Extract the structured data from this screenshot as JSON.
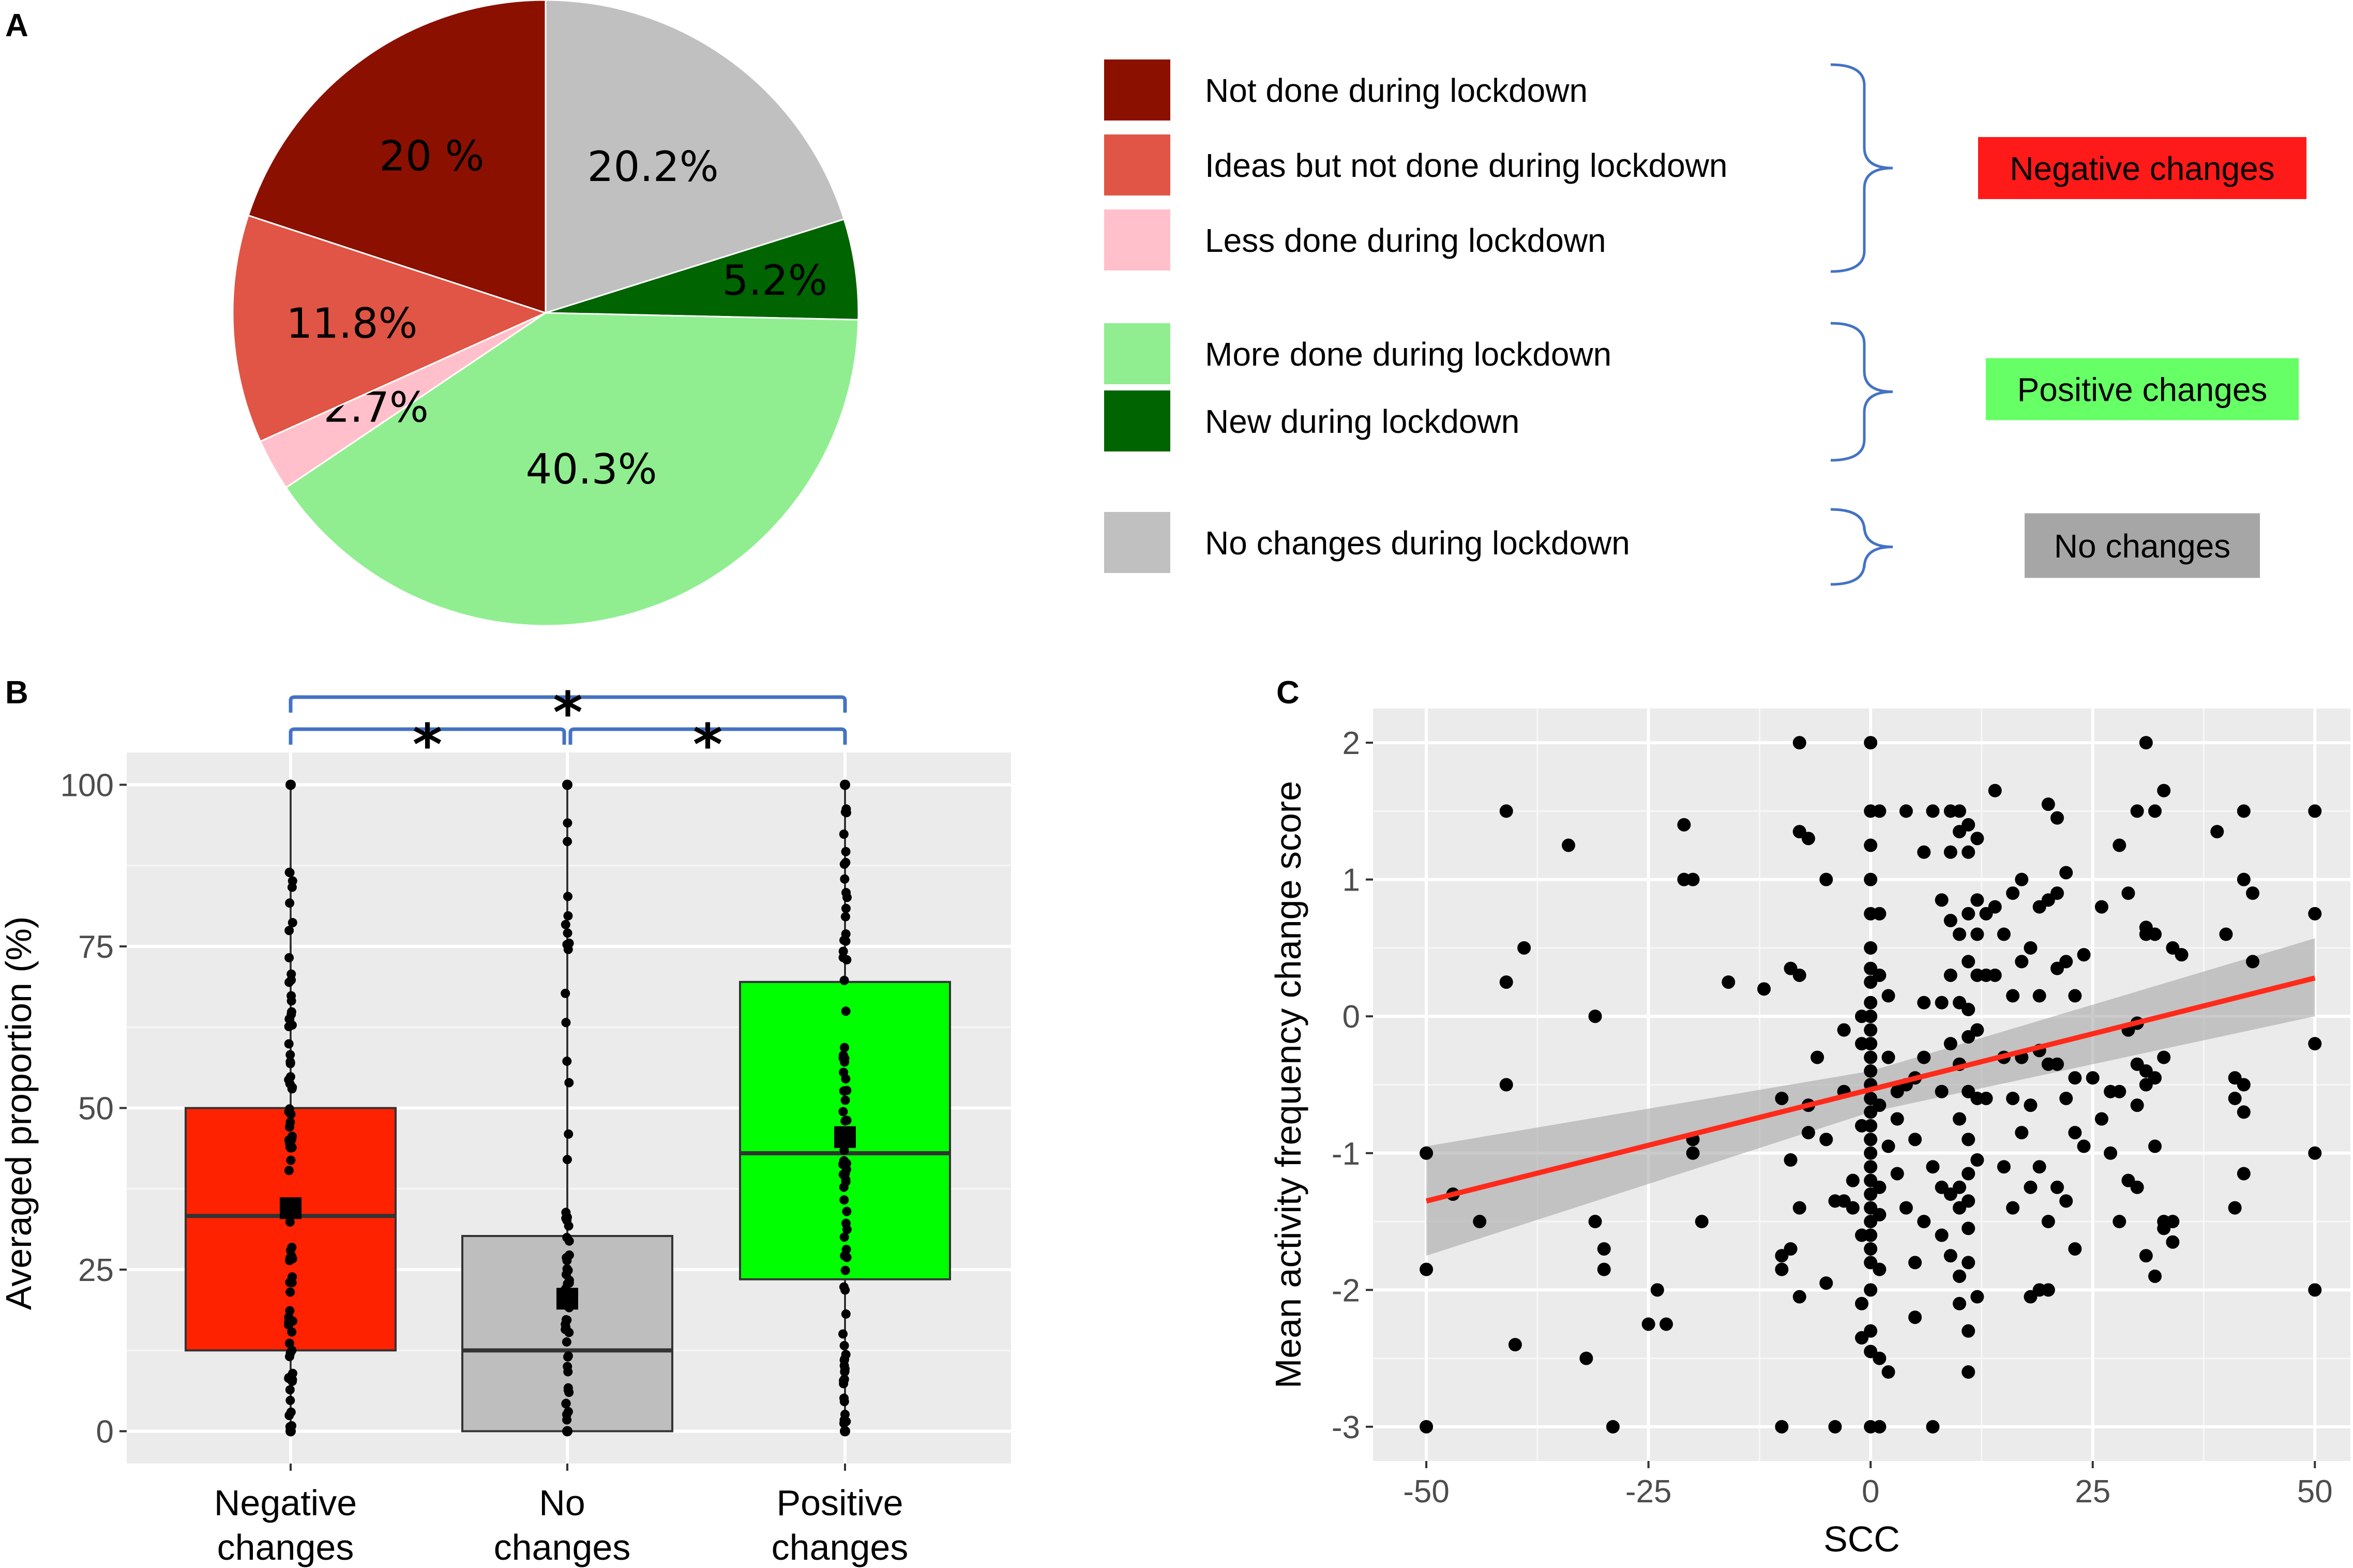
{
  "panel_labels": [
    "A",
    "B",
    "C"
  ],
  "chart_data": [
    {
      "type": "pie",
      "panel": "A",
      "slices": [
        {
          "label": "No changes during lockdown",
          "value": 20.2,
          "text": "20.2%",
          "color": "#c0c0c0"
        },
        {
          "label": "New during lockdown",
          "value": 5.2,
          "text": "5.2%",
          "color": "#006400"
        },
        {
          "label": "More done during lockdown",
          "value": 40.3,
          "text": "40.3%",
          "color": "#90ee90"
        },
        {
          "label": "Less done during lockdown",
          "value": 2.7,
          "text": "2.7%",
          "color": "#ffc0cb"
        },
        {
          "label": "Ideas but not done during lockdown",
          "value": 11.8,
          "text": "11.8%",
          "color": "#e05545"
        },
        {
          "label": "Not done during lockdown",
          "value": 20.0,
          "text": "20 %",
          "color": "#8b1000"
        }
      ],
      "legend": [
        {
          "label": "Not done during lockdown",
          "color": "#8b1000"
        },
        {
          "label": "Ideas but not done during lockdown",
          "color": "#e05545"
        },
        {
          "label": "Less done during lockdown",
          "color": "#ffc0cb"
        },
        {
          "label": "More done during lockdown",
          "color": "#90ee90"
        },
        {
          "label": "New during lockdown",
          "color": "#006400"
        },
        {
          "label": "No changes during lockdown",
          "color": "#c0c0c0"
        }
      ],
      "groups": [
        {
          "label": "Negative changes",
          "bg": "#ff1a1a",
          "fg": "#000000"
        },
        {
          "label": "Positive changes",
          "bg": "#66ff66",
          "fg": "#000000"
        },
        {
          "label": "No changes",
          "bg": "#a6a6a6",
          "fg": "#000000"
        }
      ]
    },
    {
      "type": "box",
      "panel": "B",
      "ylabel": "Averaged proportion (%)",
      "ylim": [
        -5,
        105
      ],
      "yticks": [
        0,
        25,
        50,
        75,
        100
      ],
      "categories": [
        {
          "label": [
            "Negative",
            "changes"
          ],
          "q1": 12.5,
          "median": 33.3,
          "q3": 50,
          "min": 0,
          "max": 100,
          "mean": 34.5,
          "color": "#ff2200"
        },
        {
          "label": [
            "No",
            "changes"
          ],
          "q1": 0,
          "median": 12.5,
          "q3": 30.2,
          "min": 0,
          "max": 100,
          "mean": 20.5,
          "color": "#bebebe"
        },
        {
          "label": [
            "Positive",
            "changes"
          ],
          "q1": 23.5,
          "median": 43,
          "q3": 69.5,
          "min": 0,
          "max": 100,
          "mean": 45.5,
          "color": "#00ff00"
        }
      ],
      "significance": [
        {
          "from": 0,
          "to": 1,
          "label": "*"
        },
        {
          "from": 1,
          "to": 2,
          "label": "*"
        },
        {
          "from": 0,
          "to": 2,
          "label": "*"
        }
      ]
    },
    {
      "type": "scatter",
      "panel": "C",
      "xlabel": "SCC",
      "ylabel": "Mean activity frequency change score",
      "xlim": [
        -56,
        54
      ],
      "ylim": [
        -3.25,
        2.25
      ],
      "xticks": [
        -50,
        -25,
        0,
        25,
        50
      ],
      "yticks": [
        -3,
        -2,
        -1,
        0,
        1,
        2
      ],
      "fit": {
        "x0": -50,
        "y0": -1.35,
        "x1": 50,
        "y1": 0.28,
        "color": "#ff2a1a",
        "band_lower": [
          -1.75,
          0.0
        ],
        "band_upper": [
          -0.95,
          0.57
        ]
      },
      "points": [
        [
          -50,
          -1
        ],
        [
          -50,
          -1.85
        ],
        [
          -50,
          -3
        ],
        [
          -47,
          -1.3
        ],
        [
          -44,
          -1.5
        ],
        [
          -41,
          1.5
        ],
        [
          -41,
          0.25
        ],
        [
          -41,
          -0.5
        ],
        [
          -40,
          -2.4
        ],
        [
          -39,
          0.5
        ],
        [
          -34,
          1.25
        ],
        [
          -32,
          -2.5
        ],
        [
          -31,
          0
        ],
        [
          -31,
          -1.5
        ],
        [
          -30,
          -1.7
        ],
        [
          -30,
          -1.85
        ],
        [
          -29,
          -3
        ],
        [
          -25,
          -2.25
        ],
        [
          -24,
          -2
        ],
        [
          -23,
          -2.25
        ],
        [
          -21,
          1.4
        ],
        [
          -21,
          1
        ],
        [
          -20,
          1
        ],
        [
          -20,
          -0.9
        ],
        [
          -20,
          -1
        ],
        [
          -19,
          -1.5
        ],
        [
          -16,
          0.25
        ],
        [
          -12,
          0.2
        ],
        [
          -10,
          -0.6
        ],
        [
          -10,
          -1.75
        ],
        [
          -10,
          -1.85
        ],
        [
          -10,
          -3
        ],
        [
          -9,
          0.35
        ],
        [
          -9,
          -1.7
        ],
        [
          -8,
          2
        ],
        [
          -8,
          1.35
        ],
        [
          -8,
          0.3
        ],
        [
          -7,
          1.3
        ],
        [
          -7,
          -0.65
        ],
        [
          -7,
          -0.85
        ],
        [
          -9,
          -1.05
        ],
        [
          -8,
          -1.4
        ],
        [
          -8,
          -2.05
        ],
        [
          -6,
          -0.3
        ],
        [
          -5,
          1
        ],
        [
          -5,
          -0.9
        ],
        [
          -5,
          -1.95
        ],
        [
          -4,
          -1.35
        ],
        [
          -4,
          -3
        ],
        [
          -3,
          -0.1
        ],
        [
          -3,
          -0.55
        ],
        [
          -3,
          -1.35
        ],
        [
          -2,
          -1.2
        ],
        [
          -2,
          -1.4
        ],
        [
          -1,
          0
        ],
        [
          -1,
          -0.2
        ],
        [
          -1,
          -0.8
        ],
        [
          -1,
          -1.6
        ],
        [
          -1,
          -2.1
        ],
        [
          -1,
          -2.35
        ],
        [
          0,
          2
        ],
        [
          0,
          1.5
        ],
        [
          0,
          1.25
        ],
        [
          0,
          1
        ],
        [
          0,
          0.75
        ],
        [
          0,
          0.5
        ],
        [
          0,
          0.35
        ],
        [
          0,
          0.25
        ],
        [
          0,
          0.1
        ],
        [
          0,
          0
        ],
        [
          0,
          -0.1
        ],
        [
          0,
          -0.2
        ],
        [
          0,
          -0.3
        ],
        [
          0,
          -0.4
        ],
        [
          0,
          -0.5
        ],
        [
          0,
          -0.6
        ],
        [
          0,
          -0.7
        ],
        [
          0,
          -0.8
        ],
        [
          0,
          -0.9
        ],
        [
          0,
          -1
        ],
        [
          0,
          -1.1
        ],
        [
          0,
          -1.2
        ],
        [
          0,
          -1.3
        ],
        [
          0,
          -1.4
        ],
        [
          0,
          -1.5
        ],
        [
          0,
          -1.6
        ],
        [
          0,
          -1.7
        ],
        [
          0,
          -1.8
        ],
        [
          0,
          -2
        ],
        [
          0,
          -2.3
        ],
        [
          0,
          -2.45
        ],
        [
          0,
          -3
        ],
        [
          1,
          1.5
        ],
        [
          1,
          0.75
        ],
        [
          1,
          0.3
        ],
        [
          1,
          -0.65
        ],
        [
          1,
          -1.25
        ],
        [
          1,
          -1.45
        ],
        [
          1,
          -1.85
        ],
        [
          1,
          -2.5
        ],
        [
          1,
          -3
        ],
        [
          2,
          0.15
        ],
        [
          2,
          -0.3
        ],
        [
          2,
          -0.95
        ],
        [
          2,
          -2.6
        ],
        [
          3,
          -0.55
        ],
        [
          3,
          -0.75
        ],
        [
          3,
          -1.15
        ],
        [
          4,
          1.5
        ],
        [
          4,
          -0.5
        ],
        [
          4,
          -1.4
        ],
        [
          5,
          -0.45
        ],
        [
          5,
          -0.9
        ],
        [
          5,
          -1.8
        ],
        [
          5,
          -2.2
        ],
        [
          6,
          1.2
        ],
        [
          6,
          0.1
        ],
        [
          6,
          -0.3
        ],
        [
          6,
          -1.5
        ],
        [
          7,
          1.5
        ],
        [
          7,
          -1.1
        ],
        [
          7,
          -3
        ],
        [
          8,
          0.85
        ],
        [
          8,
          0.1
        ],
        [
          8,
          -0.55
        ],
        [
          8,
          -1.25
        ],
        [
          8,
          -1.6
        ],
        [
          9,
          1.5
        ],
        [
          9,
          1.2
        ],
        [
          9,
          0.7
        ],
        [
          9,
          0.3
        ],
        [
          9,
          -0.2
        ],
        [
          9,
          -1.3
        ],
        [
          9,
          -1.75
        ],
        [
          10,
          1.5
        ],
        [
          10,
          1.35
        ],
        [
          10,
          0.6
        ],
        [
          10,
          0.1
        ],
        [
          10,
          -0.35
        ],
        [
          10,
          -0.75
        ],
        [
          10,
          -1.25
        ],
        [
          10,
          -1.4
        ],
        [
          10,
          -1.9
        ],
        [
          10,
          -2.1
        ],
        [
          11,
          1.4
        ],
        [
          11,
          1.2
        ],
        [
          11,
          0.75
        ],
        [
          11,
          0.4
        ],
        [
          11,
          0.05
        ],
        [
          11,
          -0.15
        ],
        [
          11,
          -0.55
        ],
        [
          11,
          -0.9
        ],
        [
          11,
          -1.15
        ],
        [
          11,
          -1.35
        ],
        [
          11,
          -1.55
        ],
        [
          11,
          -1.8
        ],
        [
          11,
          -2.3
        ],
        [
          11,
          -2.6
        ],
        [
          12,
          1.3
        ],
        [
          12,
          0.85
        ],
        [
          12,
          0.6
        ],
        [
          12,
          0.3
        ],
        [
          12,
          -0.1
        ],
        [
          12,
          -0.6
        ],
        [
          12,
          -1.05
        ],
        [
          12,
          -2.05
        ],
        [
          13,
          0.75
        ],
        [
          13,
          0.3
        ],
        [
          13,
          -0.6
        ],
        [
          14,
          1.65
        ],
        [
          14,
          0.8
        ],
        [
          14,
          0.3
        ],
        [
          15,
          0.6
        ],
        [
          15,
          -0.3
        ],
        [
          15,
          -1.1
        ],
        [
          16,
          0.9
        ],
        [
          16,
          0.15
        ],
        [
          16,
          -0.6
        ],
        [
          16,
          -1.4
        ],
        [
          17,
          1.0
        ],
        [
          17,
          0.4
        ],
        [
          17,
          -0.3
        ],
        [
          17,
          -0.85
        ],
        [
          18,
          0.5
        ],
        [
          18,
          -0.65
        ],
        [
          18,
          -1.25
        ],
        [
          18,
          -2.05
        ],
        [
          19,
          0.8
        ],
        [
          19,
          0.15
        ],
        [
          19,
          -0.25
        ],
        [
          19,
          -1.1
        ],
        [
          19,
          -2
        ],
        [
          20,
          1.55
        ],
        [
          20,
          0.85
        ],
        [
          20,
          -0.35
        ],
        [
          20,
          -1.5
        ],
        [
          20,
          -2
        ],
        [
          21,
          1.45
        ],
        [
          21,
          0.9
        ],
        [
          21,
          0.35
        ],
        [
          21,
          -0.35
        ],
        [
          21,
          -1.25
        ],
        [
          22,
          1.05
        ],
        [
          22,
          0.4
        ],
        [
          22,
          -0.6
        ],
        [
          22,
          -1.35
        ],
        [
          23,
          0.15
        ],
        [
          23,
          -0.45
        ],
        [
          23,
          -0.85
        ],
        [
          23,
          -1.7
        ],
        [
          24,
          0.45
        ],
        [
          24,
          -0.95
        ],
        [
          25,
          -0.45
        ],
        [
          26,
          -0.75
        ],
        [
          26,
          0.8
        ],
        [
          27,
          -0.55
        ],
        [
          27,
          -1.0
        ],
        [
          28,
          1.25
        ],
        [
          28,
          -0.55
        ],
        [
          28,
          -1.5
        ],
        [
          29,
          0.9
        ],
        [
          29,
          -0.1
        ],
        [
          29,
          -1.2
        ],
        [
          30,
          1.5
        ],
        [
          30,
          -0.05
        ],
        [
          30,
          -0.35
        ],
        [
          30,
          -0.65
        ],
        [
          30,
          -1.25
        ],
        [
          31,
          2
        ],
        [
          31,
          0.65
        ],
        [
          31,
          0.6
        ],
        [
          31,
          -0.4
        ],
        [
          31,
          -0.5
        ],
        [
          31,
          -1.75
        ],
        [
          32,
          1.5
        ],
        [
          32,
          0.6
        ],
        [
          32,
          -0.45
        ],
        [
          32,
          -0.95
        ],
        [
          32,
          -1.9
        ],
        [
          33,
          1.65
        ],
        [
          33,
          -0.3
        ],
        [
          33,
          -1.5
        ],
        [
          33,
          -1.55
        ],
        [
          34,
          0.5
        ],
        [
          34,
          -1.65
        ],
        [
          34,
          -1.5
        ],
        [
          35,
          0.45
        ],
        [
          39,
          1.35
        ],
        [
          40,
          0.6
        ],
        [
          41,
          -0.45
        ],
        [
          41,
          -0.6
        ],
        [
          41,
          -1.4
        ],
        [
          42,
          1.5
        ],
        [
          42,
          1.0
        ],
        [
          42,
          -0.5
        ],
        [
          42,
          -0.7
        ],
        [
          42,
          -1.15
        ],
        [
          43,
          0.9
        ],
        [
          43,
          0.4
        ],
        [
          50,
          1.5
        ],
        [
          50,
          0.75
        ],
        [
          50,
          -0.2
        ],
        [
          50,
          -1
        ],
        [
          50,
          -2
        ]
      ]
    }
  ],
  "stats": {
    "b_significance": "*"
  }
}
